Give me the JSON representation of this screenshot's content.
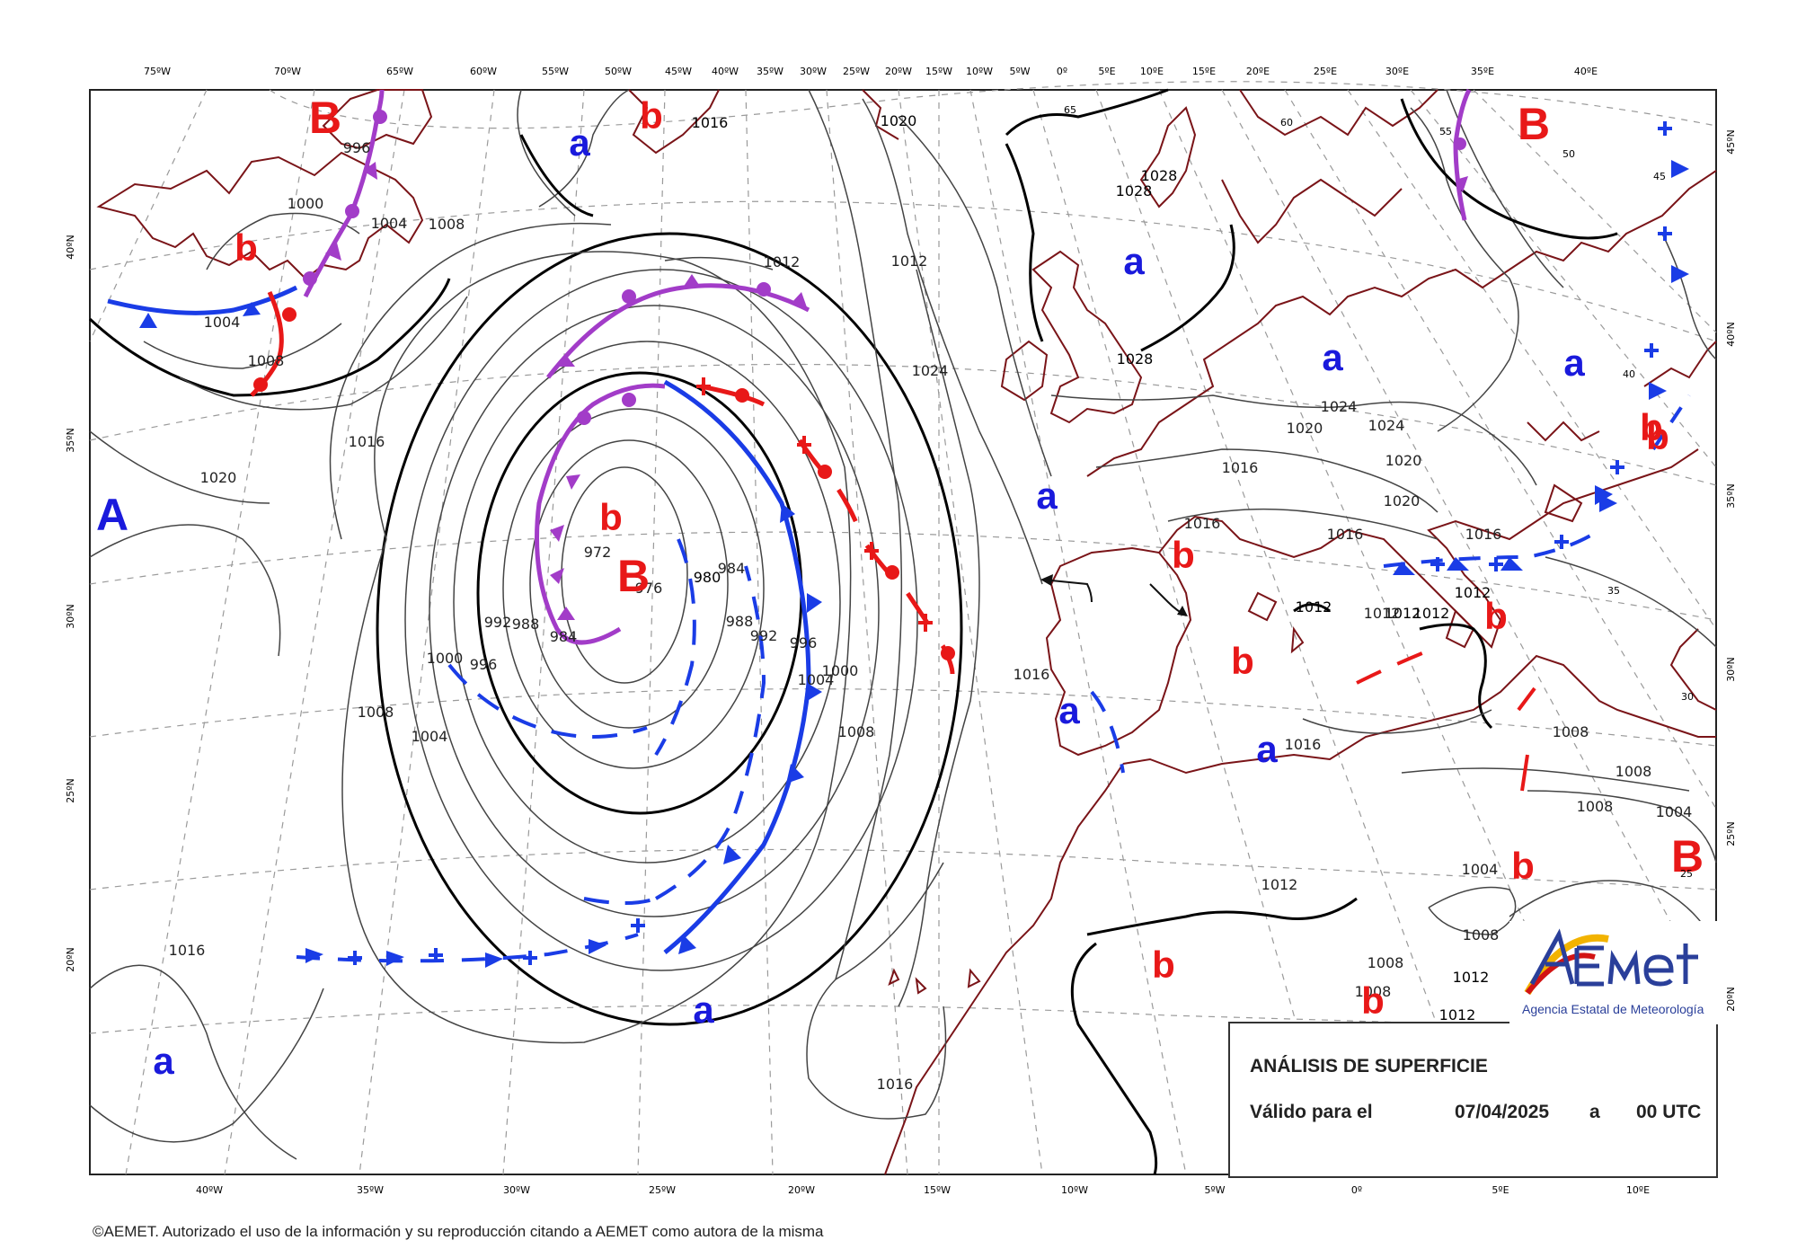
{
  "chart_title": "ANÁLISIS DE SUPERFICIE",
  "valid_label": "Válido para el",
  "valid_date": "07/04/2025",
  "valid_a": "a",
  "valid_time": "00 UTC",
  "copyright": "©AEMET. Autorizado el uso de la información y su reproducción citando a AEMET como autora de la misma",
  "logo": {
    "wordmark": "AEmet",
    "subtitle": "Agencia Estatal de Meteorología"
  },
  "colors": {
    "high": "#1a1adc",
    "low": "#e81818",
    "warm_front": "#e81818",
    "cold_front": "#1a3ce6",
    "occluded_front": "#a23cc8",
    "coast": "#7a1418"
  },
  "top_lon_labels": [
    "75ºW",
    "70ºW",
    "65ºW",
    "60ºW",
    "55ºW",
    "50ºW",
    "45ºW",
    "40ºW",
    "35ºW",
    "30ºW",
    "25ºW",
    "20ºW",
    "15ºW",
    "10ºW",
    "5ºW",
    "0º",
    "5ºE",
    "10ºE",
    "15ºE",
    "20ºE",
    "25ºE",
    "30ºE",
    "35ºE",
    "40ºE"
  ],
  "bottom_lon_labels": [
    "40ºW",
    "35ºW",
    "30ºW",
    "25ºW",
    "20ºW",
    "15ºW",
    "10ºW",
    "5ºW",
    "0º",
    "5ºE",
    "10ºE"
  ],
  "left_lat_labels": [
    "40ºN",
    "35ºN",
    "30ºN",
    "25ºN",
    "20ºN"
  ],
  "right_lat_labels": [
    "45ºN",
    "40ºN",
    "35ºN",
    "30ºN",
    "25ºN",
    "20ºN"
  ],
  "pressure_centres": [
    {
      "label": "B",
      "kind": "low_main"
    },
    {
      "label": "b",
      "kind": "low"
    },
    {
      "label": "b",
      "kind": "low"
    },
    {
      "label": "B",
      "kind": "low_main"
    },
    {
      "label": "b",
      "kind": "low"
    },
    {
      "label": "a",
      "kind": "high"
    },
    {
      "label": "A",
      "kind": "high_main"
    },
    {
      "label": "a",
      "kind": "high"
    },
    {
      "label": "b",
      "kind": "low"
    },
    {
      "label": "B",
      "kind": "low_main"
    },
    {
      "label": "A",
      "kind": "high_main"
    },
    {
      "label": "a",
      "kind": "high"
    },
    {
      "label": "a",
      "kind": "high"
    },
    {
      "label": "b",
      "kind": "low"
    },
    {
      "label": "a",
      "kind": "high"
    },
    {
      "label": "a",
      "kind": "high"
    },
    {
      "label": "b",
      "kind": "low"
    },
    {
      "label": "b",
      "kind": "low"
    },
    {
      "label": "a",
      "kind": "high"
    },
    {
      "label": "b",
      "kind": "low"
    },
    {
      "label": "b",
      "kind": "low"
    },
    {
      "label": "B",
      "kind": "low_main"
    },
    {
      "label": "b",
      "kind": "low"
    },
    {
      "label": "b",
      "kind": "low"
    },
    {
      "label": "a",
      "kind": "high"
    },
    {
      "label": "a",
      "kind": "high"
    },
    {
      "label": "b",
      "kind": "low"
    }
  ],
  "isobar_labels": [
    "996",
    "1000",
    "1004",
    "1008",
    "1004",
    "1008",
    "1016",
    "1020",
    "1012",
    "1020",
    "1016",
    "1012",
    "1028",
    "1028",
    "1028",
    "1024",
    "1024",
    "1020",
    "1024",
    "1016",
    "1020",
    "1016",
    "1020",
    "1016",
    "1012",
    "1012",
    "1012",
    "1012",
    "1012",
    "1016",
    "1016",
    "1008",
    "1008",
    "1008",
    "1004",
    "1004",
    "1012",
    "1008",
    "1008",
    "1008",
    "1012",
    "1016",
    "972",
    "976",
    "980",
    "984",
    "992",
    "988",
    "984",
    "988",
    "992",
    "996",
    "1000",
    "1004",
    "1008",
    "1000",
    "996",
    "1008",
    "1004",
    "1016",
    "1012",
    "1016"
  ],
  "graticule_labels": [
    "65",
    "60",
    "55",
    "50",
    "45",
    "40",
    "35",
    "30",
    "25"
  ]
}
